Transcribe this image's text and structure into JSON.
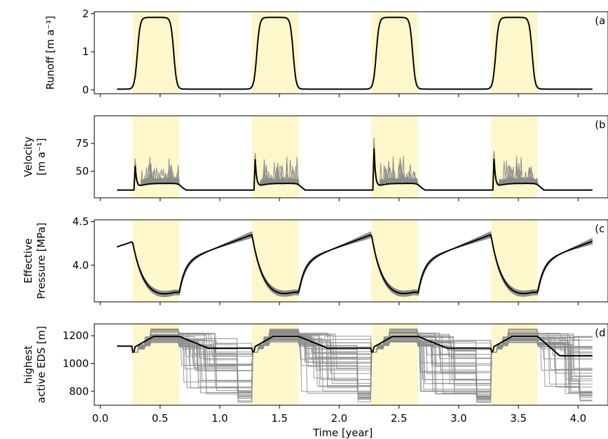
{
  "figure": {
    "xlabel": "Time [year]",
    "colors": {
      "season_band": "#fff7cc",
      "mean_line": "#000000",
      "ensemble": "#8c8c8c",
      "frame": "#000000"
    }
  },
  "chart_data": [
    {
      "id": "a",
      "type": "line",
      "panel_tag": "(a",
      "ylabel_lines": [
        "Runoff [m a⁻¹]"
      ],
      "xlim": [
        -0.05,
        4.25
      ],
      "ylim": [
        -0.1,
        2.05
      ],
      "yticks": [
        0,
        1,
        2
      ],
      "ytick_labels": [
        "0",
        "1",
        "2"
      ],
      "seasons": [
        [
          0.27,
          0.66
        ],
        [
          1.27,
          1.66
        ],
        [
          2.27,
          2.66
        ],
        [
          3.27,
          3.66
        ]
      ],
      "mean": {
        "t_start": 0.14,
        "t_end": 4.12,
        "base": 0.02,
        "peak": 1.9
      },
      "ensemble_members": 1
    },
    {
      "id": "b",
      "type": "line",
      "panel_tag": "(b",
      "ylabel_lines": [
        "Velocity",
        "[m a⁻¹]"
      ],
      "xlim": [
        -0.05,
        4.25
      ],
      "ylim": [
        26,
        100
      ],
      "yticks": [
        50,
        75
      ],
      "ytick_labels": [
        "50",
        "75"
      ],
      "seasons": [
        [
          0.27,
          0.66
        ],
        [
          1.27,
          1.66
        ],
        [
          2.27,
          2.66
        ],
        [
          3.27,
          3.66
        ]
      ],
      "mean": {
        "t_start": 0.14,
        "t_end": 4.12,
        "base": 33,
        "spike_peaks": [
          58,
          78,
          74,
          77
        ],
        "plateau": 39
      },
      "ensemble_members": 18
    },
    {
      "id": "c",
      "type": "line",
      "panel_tag": "(c",
      "ylabel_lines": [
        "Effective",
        "Pressure [MPa]"
      ],
      "xlim": [
        -0.05,
        4.25
      ],
      "ylim": [
        3.58,
        4.52
      ],
      "yticks": [
        4.0,
        4.5
      ],
      "ytick_labels": [
        "4.0",
        "4.5"
      ],
      "seasons": [
        [
          0.27,
          0.66
        ],
        [
          1.27,
          1.66
        ],
        [
          2.27,
          2.66
        ],
        [
          3.27,
          3.66
        ]
      ],
      "mean": {
        "t_start": 0.14,
        "t_end": 4.12,
        "start": 4.21,
        "pre_melt": 4.27,
        "minimum": 3.68,
        "winter_end": 4.35,
        "end": 4.28
      },
      "ensemble_members": 40
    },
    {
      "id": "d",
      "type": "line",
      "panel_tag": "(d",
      "ylabel_lines": [
        "highest",
        "active EDS [m]"
      ],
      "xlim": [
        -0.05,
        4.25
      ],
      "ylim": [
        700,
        1285
      ],
      "yticks": [
        800,
        1000,
        1200
      ],
      "ytick_labels": [
        "800",
        "1000",
        "1200"
      ],
      "xticks": [
        0,
        0.5,
        1,
        1.5,
        2,
        2.5,
        3,
        3.5,
        4
      ],
      "xtick_labels": [
        "0.0",
        "0.5",
        "1.0",
        "1.5",
        "2.0",
        "2.5",
        "3.0",
        "3.5",
        "4.0"
      ],
      "seasons": [
        [
          0.27,
          0.66
        ],
        [
          1.27,
          1.66
        ],
        [
          2.27,
          2.66
        ],
        [
          3.27,
          3.66
        ]
      ],
      "mean": {
        "t_start": 0.14,
        "t_end": 4.12,
        "start": 1125,
        "summer": 1195,
        "winter": 1110,
        "end": 1055
      },
      "ensemble_members": 40
    }
  ]
}
